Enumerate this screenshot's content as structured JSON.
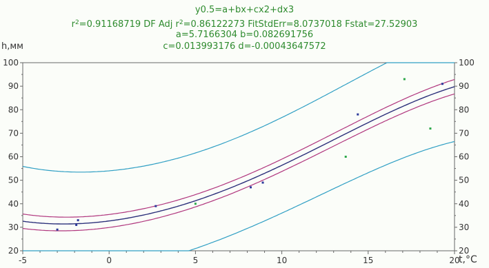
{
  "header": {
    "equation": "y0.5=a+bx+cx2+dx3",
    "stats_prefix": "r",
    "stats_mid": "=0.91168719  DF Adj r",
    "stats_suffix": "=0.86122273  FitStdErr=8.0737018  Fstat=27.52903",
    "sup": "2",
    "params_ab": "a=5.7166304 b=0.082691756",
    "params_cd": "c=0.013993176 d=-0.00043647572"
  },
  "chart_data": {
    "type": "scatter",
    "ylabel": "h,мм",
    "xlabel": "t,°C",
    "xlim": [
      -5,
      20
    ],
    "ylim": [
      20,
      100
    ],
    "x_ticks": [
      -5,
      0,
      5,
      10,
      15,
      20
    ],
    "y_ticks": [
      20,
      30,
      40,
      50,
      60,
      70,
      80,
      90,
      100
    ],
    "grid": false,
    "coefficients": {
      "a": 5.7166304,
      "b": 0.082691756,
      "c": 0.013993176,
      "d": -0.00043647572
    },
    "points": [
      {
        "x": -3.0,
        "y": 29,
        "color": "#2d3a9b"
      },
      {
        "x": -1.9,
        "y": 31,
        "color": "#2d3a9b"
      },
      {
        "x": -1.8,
        "y": 33,
        "color": "#2d3a9b"
      },
      {
        "x": 2.7,
        "y": 39,
        "color": "#2d3a9b"
      },
      {
        "x": 5.0,
        "y": 40,
        "color": "#2da84a"
      },
      {
        "x": 8.2,
        "y": 47,
        "color": "#2d3a9b"
      },
      {
        "x": 8.9,
        "y": 49,
        "color": "#2d3a9b"
      },
      {
        "x": 13.7,
        "y": 60,
        "color": "#2da84a"
      },
      {
        "x": 14.4,
        "y": 78,
        "color": "#2d3a9b"
      },
      {
        "x": 17.1,
        "y": 93,
        "color": "#2da84a"
      },
      {
        "x": 18.6,
        "y": 72,
        "color": "#2da84a"
      },
      {
        "x": 19.3,
        "y": 91,
        "color": "#2d3a9b"
      }
    ],
    "colors": {
      "fit": "#2b2f7a",
      "confidence": "#b0357d",
      "prediction": "#2f9fc4",
      "axis": "#666666",
      "text": "#333333"
    }
  }
}
